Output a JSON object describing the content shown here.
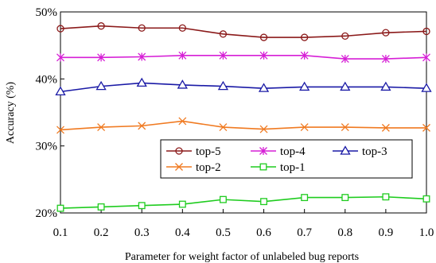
{
  "chart_data": {
    "type": "line",
    "title": "",
    "xlabel": "Parameter for weight factor of unlabeled bug reports",
    "ylabel": "Accuracy (%)",
    "x": [
      0.1,
      0.2,
      0.3,
      0.4,
      0.5,
      0.6,
      0.7,
      0.8,
      0.9,
      1.0
    ],
    "x_tick_labels": [
      "0.1",
      "0.2",
      "0.3",
      "0.4",
      "0.5",
      "0.6",
      "0.7",
      "0.8",
      "0.9",
      "1.0"
    ],
    "xlim": [
      0.1,
      1.0
    ],
    "ylim": [
      20,
      50
    ],
    "y_ticks": [
      20,
      30,
      40,
      50
    ],
    "y_tick_labels": [
      "20%",
      "30%",
      "40%",
      "50%"
    ],
    "grid": false,
    "legend_placement": "lower-right",
    "series": [
      {
        "name": "top-5",
        "color": "#8b1a1a",
        "marker": "circle",
        "values": [
          47.5,
          47.9,
          47.6,
          47.6,
          46.7,
          46.2,
          46.2,
          46.4,
          46.9,
          47.1
        ]
      },
      {
        "name": "top-4",
        "color": "#d61fd6",
        "marker": "asterisk",
        "values": [
          43.2,
          43.2,
          43.3,
          43.5,
          43.5,
          43.5,
          43.5,
          43.0,
          43.0,
          43.2
        ]
      },
      {
        "name": "top-3",
        "color": "#1a1aa6",
        "marker": "triangle",
        "values": [
          38.1,
          38.9,
          39.4,
          39.1,
          38.9,
          38.6,
          38.8,
          38.8,
          38.8,
          38.6
        ]
      },
      {
        "name": "top-2",
        "color": "#f07a21",
        "marker": "x",
        "values": [
          32.4,
          32.8,
          33.0,
          33.7,
          32.8,
          32.5,
          32.8,
          32.8,
          32.7,
          32.7
        ]
      },
      {
        "name": "top-1",
        "color": "#1fcc1f",
        "marker": "square",
        "values": [
          20.7,
          20.9,
          21.1,
          21.3,
          22.0,
          21.7,
          22.3,
          22.3,
          22.4,
          22.1
        ]
      }
    ],
    "legend_order": [
      "top-5",
      "top-4",
      "top-3",
      "top-2",
      "top-1"
    ]
  }
}
